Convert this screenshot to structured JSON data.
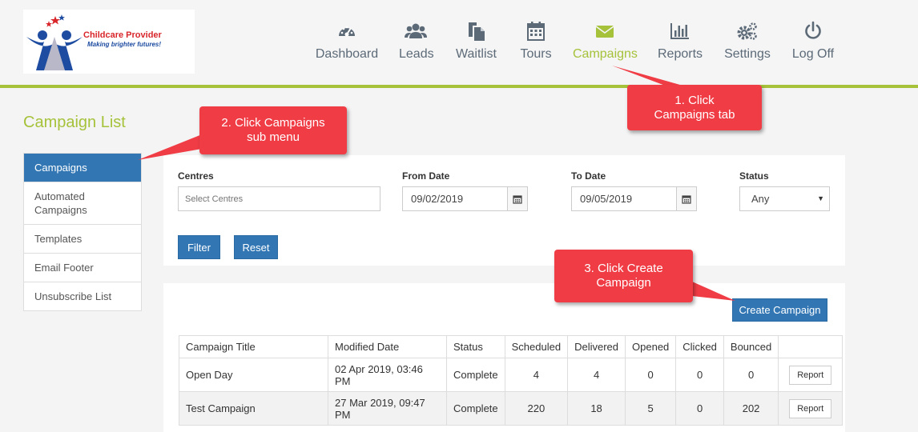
{
  "logo": {
    "name": "Childcare Provider",
    "tagline": "Making brighter futures!"
  },
  "nav": [
    {
      "label": "Dashboard",
      "icon": "dashboard-gauge-icon"
    },
    {
      "label": "Leads",
      "icon": "users-icon"
    },
    {
      "label": "Waitlist",
      "icon": "files-icon"
    },
    {
      "label": "Tours",
      "icon": "calendar-icon"
    },
    {
      "label": "Campaigns",
      "icon": "envelope-icon",
      "active": true
    },
    {
      "label": "Reports",
      "icon": "bar-chart-icon"
    },
    {
      "label": "Settings",
      "icon": "gears-icon"
    },
    {
      "label": "Log Off",
      "icon": "power-icon"
    }
  ],
  "page_title": "Campaign List",
  "sidebar": {
    "items": [
      {
        "label": "Campaigns",
        "active": true
      },
      {
        "label": "Automated Campaigns"
      },
      {
        "label": "Templates"
      },
      {
        "label": "Email Footer"
      },
      {
        "label": "Unsubscribe List"
      }
    ]
  },
  "filters": {
    "centres_label": "Centres",
    "centres_placeholder": "Select Centres",
    "from_label": "From Date",
    "from_value": "09/02/2019",
    "to_label": "To Date",
    "to_value": "09/05/2019",
    "status_label": "Status",
    "status_value": "Any",
    "filter_button": "Filter",
    "reset_button": "Reset"
  },
  "list": {
    "create_button": "Create Campaign",
    "columns": [
      "Campaign Title",
      "Modified Date",
      "Status",
      "Scheduled",
      "Delivered",
      "Opened",
      "Clicked",
      "Bounced",
      ""
    ],
    "rows": [
      {
        "title": "Open Day",
        "modified": "02 Apr 2019, 03:46 PM",
        "status": "Complete",
        "scheduled": "4",
        "delivered": "4",
        "opened": "0",
        "clicked": "0",
        "bounced": "0",
        "action": "Report"
      },
      {
        "title": "Test Campaign",
        "modified": "27 Mar 2019, 09:47 PM",
        "status": "Complete",
        "scheduled": "220",
        "delivered": "18",
        "opened": "5",
        "clicked": "0",
        "bounced": "202",
        "action": "Report"
      }
    ]
  },
  "annotations": {
    "step1": "1. Click\nCampaigns tab",
    "step2": "2. Click Campaigns\nsub menu",
    "step3": "3. Click Create\nCampaign"
  },
  "colors": {
    "accent": "#a5c23a",
    "primary": "#3277b4",
    "callout": "#f03c45",
    "nav_text": "#5c6a78"
  }
}
